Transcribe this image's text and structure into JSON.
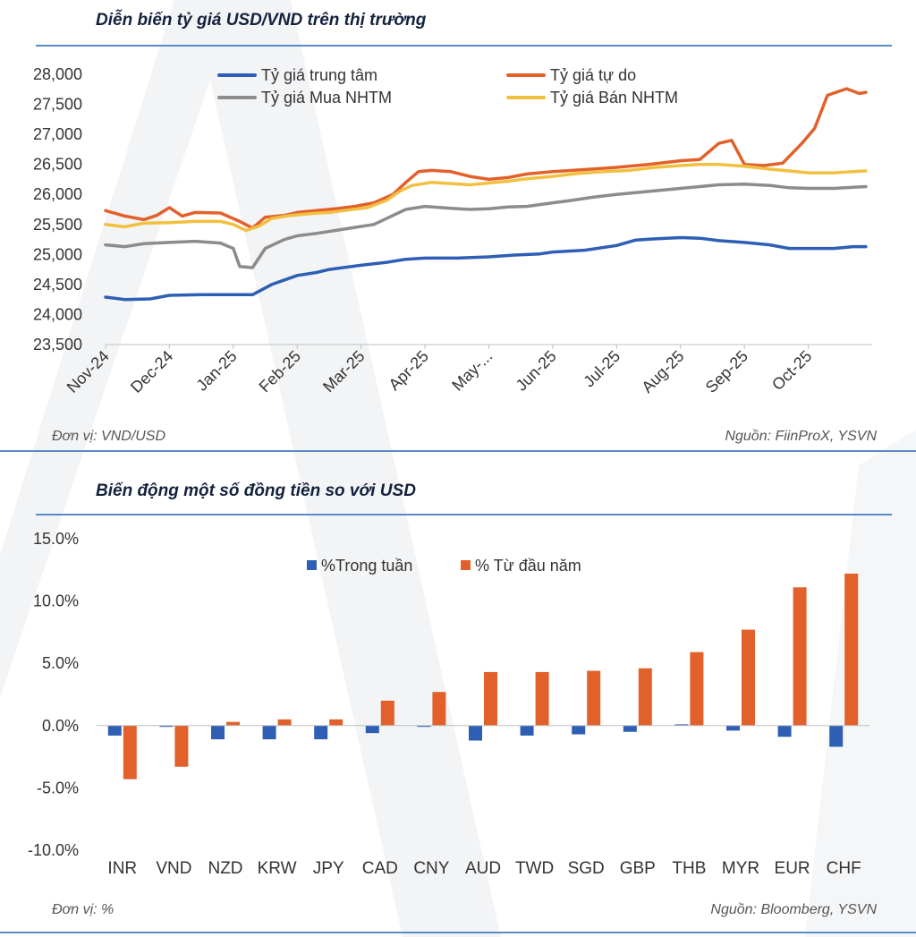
{
  "chart_data": [
    {
      "type": "line",
      "title": "Diễn biến tỷ giá USD/VND trên thị trường",
      "unit_note": "Đơn vị: VND/USD",
      "source": "Nguồn: FiinProX, YSVN",
      "ylim": [
        23500,
        28000
      ],
      "y_ticks": [
        23500,
        24000,
        24500,
        25000,
        25500,
        26000,
        26500,
        27000,
        27500,
        28000
      ],
      "y_tick_labels": [
        "23,500",
        "24,000",
        "24,500",
        "25,000",
        "25,500",
        "26,000",
        "26,500",
        "27,000",
        "27,500",
        "28,000"
      ],
      "x_tick_labels": [
        "Nov-24",
        "Dec-24",
        "Jan-25",
        "Feb-25",
        "Mar-25",
        "Apr-25",
        "May-...",
        "Jun-25",
        "Jul-25",
        "Aug-25",
        "Sep-25",
        "Oct-25"
      ],
      "legend_position": "top",
      "series": [
        {
          "name": "Tỷ giá trung tâm",
          "color": "#2e5fb5",
          "points": [
            [
              0,
              24290
            ],
            [
              0.3,
              24250
            ],
            [
              0.7,
              24260
            ],
            [
              1.0,
              24320
            ],
            [
              1.5,
              24330
            ],
            [
              2.0,
              24330
            ],
            [
              2.3,
              24330
            ],
            [
              2.6,
              24500
            ],
            [
              3.0,
              24650
            ],
            [
              3.3,
              24700
            ],
            [
              3.5,
              24750
            ],
            [
              4.0,
              24820
            ],
            [
              4.4,
              24870
            ],
            [
              4.7,
              24920
            ],
            [
              5.0,
              24940
            ],
            [
              5.5,
              24940
            ],
            [
              6.0,
              24960
            ],
            [
              6.4,
              24990
            ],
            [
              6.8,
              25010
            ],
            [
              7.0,
              25040
            ],
            [
              7.5,
              25070
            ],
            [
              8.0,
              25150
            ],
            [
              8.3,
              25240
            ],
            [
              8.6,
              25260
            ],
            [
              9.0,
              25280
            ],
            [
              9.3,
              25270
            ],
            [
              9.6,
              25230
            ],
            [
              10.0,
              25200
            ],
            [
              10.4,
              25160
            ],
            [
              10.7,
              25100
            ],
            [
              11.0,
              25100
            ],
            [
              11.4,
              25100
            ],
            [
              11.7,
              25130
            ],
            [
              11.9,
              25130
            ]
          ]
        },
        {
          "name": "Tỷ giá tự do",
          "color": "#e2612b",
          "points": [
            [
              0,
              25730
            ],
            [
              0.3,
              25640
            ],
            [
              0.6,
              25580
            ],
            [
              0.8,
              25650
            ],
            [
              1.0,
              25780
            ],
            [
              1.2,
              25640
            ],
            [
              1.4,
              25700
            ],
            [
              1.8,
              25690
            ],
            [
              2.1,
              25550
            ],
            [
              2.3,
              25440
            ],
            [
              2.5,
              25620
            ],
            [
              2.8,
              25650
            ],
            [
              3.0,
              25700
            ],
            [
              3.3,
              25730
            ],
            [
              3.6,
              25760
            ],
            [
              3.9,
              25800
            ],
            [
              4.2,
              25860
            ],
            [
              4.5,
              26000
            ],
            [
              4.7,
              26200
            ],
            [
              4.9,
              26380
            ],
            [
              5.1,
              26400
            ],
            [
              5.4,
              26380
            ],
            [
              5.7,
              26300
            ],
            [
              6.0,
              26250
            ],
            [
              6.3,
              26280
            ],
            [
              6.6,
              26340
            ],
            [
              7.0,
              26380
            ],
            [
              7.3,
              26400
            ],
            [
              7.6,
              26420
            ],
            [
              8.0,
              26450
            ],
            [
              8.5,
              26500
            ],
            [
              9.0,
              26560
            ],
            [
              9.3,
              26580
            ],
            [
              9.6,
              26850
            ],
            [
              9.8,
              26900
            ],
            [
              10.0,
              26500
            ],
            [
              10.3,
              26480
            ],
            [
              10.6,
              26520
            ],
            [
              10.9,
              26850
            ],
            [
              11.1,
              27100
            ],
            [
              11.3,
              27650
            ],
            [
              11.6,
              27760
            ],
            [
              11.8,
              27680
            ],
            [
              11.9,
              27700
            ]
          ]
        },
        {
          "name": "Tỷ giá Mua NHTM",
          "color": "#8c8c8c",
          "points": [
            [
              0,
              25160
            ],
            [
              0.3,
              25130
            ],
            [
              0.6,
              25180
            ],
            [
              1.0,
              25200
            ],
            [
              1.4,
              25220
            ],
            [
              1.8,
              25190
            ],
            [
              2.0,
              25100
            ],
            [
              2.1,
              24800
            ],
            [
              2.3,
              24780
            ],
            [
              2.5,
              25100
            ],
            [
              2.8,
              25250
            ],
            [
              3.0,
              25310
            ],
            [
              3.3,
              25350
            ],
            [
              3.6,
              25400
            ],
            [
              3.9,
              25450
            ],
            [
              4.2,
              25500
            ],
            [
              4.5,
              25650
            ],
            [
              4.7,
              25750
            ],
            [
              5.0,
              25800
            ],
            [
              5.4,
              25770
            ],
            [
              5.7,
              25750
            ],
            [
              6.0,
              25760
            ],
            [
              6.3,
              25790
            ],
            [
              6.6,
              25800
            ],
            [
              7.0,
              25860
            ],
            [
              7.3,
              25900
            ],
            [
              7.6,
              25950
            ],
            [
              8.0,
              26000
            ],
            [
              8.5,
              26050
            ],
            [
              9.0,
              26100
            ],
            [
              9.3,
              26130
            ],
            [
              9.6,
              26160
            ],
            [
              10.0,
              26170
            ],
            [
              10.4,
              26150
            ],
            [
              10.7,
              26110
            ],
            [
              11.0,
              26100
            ],
            [
              11.4,
              26100
            ],
            [
              11.7,
              26120
            ],
            [
              11.9,
              26130
            ]
          ]
        },
        {
          "name": "Tỷ giá Bán NHTM",
          "color": "#f2c040",
          "points": [
            [
              0,
              25500
            ],
            [
              0.3,
              25460
            ],
            [
              0.6,
              25520
            ],
            [
              1.0,
              25530
            ],
            [
              1.4,
              25550
            ],
            [
              1.8,
              25550
            ],
            [
              2.0,
              25500
            ],
            [
              2.2,
              25400
            ],
            [
              2.4,
              25470
            ],
            [
              2.6,
              25600
            ],
            [
              2.9,
              25650
            ],
            [
              3.2,
              25680
            ],
            [
              3.5,
              25700
            ],
            [
              3.8,
              25740
            ],
            [
              4.1,
              25780
            ],
            [
              4.4,
              25900
            ],
            [
              4.6,
              26050
            ],
            [
              4.8,
              26150
            ],
            [
              5.1,
              26200
            ],
            [
              5.4,
              26180
            ],
            [
              5.7,
              26160
            ],
            [
              6.0,
              26190
            ],
            [
              6.3,
              26220
            ],
            [
              6.6,
              26260
            ],
            [
              7.0,
              26300
            ],
            [
              7.4,
              26350
            ],
            [
              7.8,
              26380
            ],
            [
              8.2,
              26400
            ],
            [
              8.6,
              26450
            ],
            [
              9.0,
              26480
            ],
            [
              9.3,
              26500
            ],
            [
              9.6,
              26500
            ],
            [
              10.0,
              26470
            ],
            [
              10.4,
              26420
            ],
            [
              10.7,
              26390
            ],
            [
              11.0,
              26360
            ],
            [
              11.4,
              26360
            ],
            [
              11.7,
              26380
            ],
            [
              11.9,
              26390
            ]
          ]
        }
      ]
    },
    {
      "type": "bar",
      "title": "Biến động một số đồng tiền so với USD",
      "unit_note": "Đơn vị: %",
      "source": "Nguồn: Bloomberg, YSVN",
      "ylim": [
        -10,
        15
      ],
      "y_ticks": [
        -10,
        -5,
        0,
        5,
        10,
        15
      ],
      "y_tick_labels": [
        "-10.0%",
        "-5.0%",
        "0.0%",
        "5.0%",
        "10.0%",
        "15.0%"
      ],
      "categories": [
        "INR",
        "VND",
        "NZD",
        "KRW",
        "JPY",
        "CAD",
        "CNY",
        "AUD",
        "TWD",
        "SGD",
        "GBP",
        "THB",
        "MYR",
        "EUR",
        "CHF"
      ],
      "legend_position": "top",
      "series": [
        {
          "name": "%Trong tuần",
          "color": "#2e5fb5",
          "values": [
            -0.8,
            -0.1,
            -1.1,
            -1.1,
            -1.1,
            -0.6,
            -0.1,
            -1.2,
            -0.8,
            -0.7,
            -0.5,
            0.1,
            -0.4,
            -0.9,
            -1.7
          ]
        },
        {
          "name": "% Từ đầu năm",
          "color": "#e2612b",
          "values": [
            -4.3,
            -3.3,
            0.3,
            0.5,
            0.5,
            2.0,
            2.7,
            4.3,
            4.3,
            4.4,
            4.6,
            5.9,
            7.7,
            11.1,
            12.2
          ]
        }
      ]
    }
  ]
}
